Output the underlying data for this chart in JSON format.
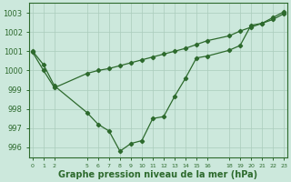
{
  "bg_color": "#cce8dc",
  "grid_color": "#aaccbb",
  "line_color": "#2d6a2d",
  "marker_color": "#2d6a2d",
  "xlabel": "Graphe pression niveau de la mer (hPa)",
  "xlabel_fontsize": 7,
  "ylim": [
    995.5,
    1003.5
  ],
  "yticks": [
    996,
    997,
    998,
    999,
    1000,
    1001,
    1002,
    1003
  ],
  "xlim": [
    -0.3,
    23.3
  ],
  "xtick_positions": [
    0,
    1,
    2,
    5,
    6,
    7,
    8,
    9,
    10,
    11,
    12,
    13,
    14,
    15,
    16,
    18,
    19,
    20,
    21,
    22,
    23
  ],
  "xtick_labels": [
    "0",
    "1",
    "2",
    "5",
    "6",
    "7",
    "8",
    "9",
    "10",
    "11",
    "12",
    "13",
    "14",
    "15",
    "16",
    "18",
    "19",
    "20",
    "21",
    "22",
    "23"
  ],
  "series1_x": [
    0,
    1,
    2,
    5,
    6,
    7,
    8,
    9,
    10,
    11,
    12,
    13,
    14,
    15,
    16,
    18,
    19,
    20,
    21,
    22,
    23
  ],
  "series1_y": [
    1001.0,
    1000.3,
    999.2,
    997.8,
    997.2,
    996.85,
    995.8,
    996.2,
    996.35,
    997.5,
    997.6,
    998.65,
    999.6,
    1000.65,
    1000.75,
    1001.05,
    1001.3,
    1002.35,
    1002.45,
    1002.75,
    1003.05
  ],
  "series2_x": [
    0,
    1,
    2,
    5,
    6,
    7,
    8,
    9,
    10,
    11,
    12,
    13,
    14,
    15,
    16,
    18,
    19,
    20,
    21,
    22,
    23
  ],
  "series2_y": [
    1000.95,
    1000.0,
    999.1,
    999.85,
    1000.0,
    1000.1,
    1000.25,
    1000.4,
    1000.55,
    1000.7,
    1000.85,
    1001.0,
    1001.15,
    1001.35,
    1001.55,
    1001.8,
    1002.05,
    1002.25,
    1002.45,
    1002.65,
    1002.95
  ]
}
